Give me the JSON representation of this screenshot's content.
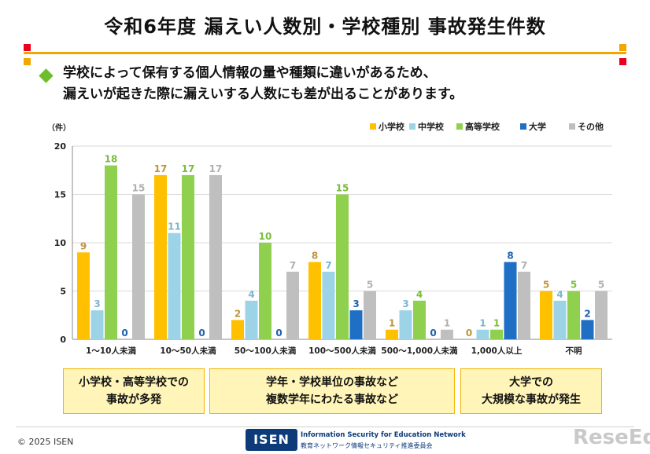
{
  "title": "令和6年度 漏えい人数別・学校種別 事故発生件数",
  "lead": [
    "学校によって保有する個人情報の量や種類に違いがあるため、",
    "漏えいが起きた際に漏えいする人数にも差が出ることがあります。"
  ],
  "callouts": [
    {
      "lines": [
        "小学校・高等学校での",
        "事故が多発"
      ]
    },
    {
      "lines": [
        "学年・学校単位の事故など",
        "複数学年にわたる事故など"
      ]
    },
    {
      "lines": [
        "大学での",
        "大規模な事故が発生"
      ]
    }
  ],
  "footer": {
    "copyright": "© 2025 ISEN",
    "logo_mark": "ISEN",
    "logo_en": "Information Security for Education Network",
    "logo_ja": "教育ネットワーク情報セキュリティ推進委員会",
    "watermark": "ReseEd"
  },
  "colors": {
    "accent_rule": "#f0a800",
    "square_red": "#e8001c",
    "square_yellow": "#f0a800",
    "bullet_green": "#6cbf2a",
    "callout_fill": "#fff5b8",
    "callout_border": "#f4b400"
  },
  "chart_data": {
    "type": "bar",
    "ylabel": "（件）",
    "ylim": [
      0,
      20
    ],
    "yticks": [
      0,
      5,
      10,
      15,
      20
    ],
    "grid": true,
    "legend_position": "top-right",
    "categories": [
      "1～10人未満",
      "10～50人未満",
      "50～100人未満",
      "100～500人未満",
      "500～1,000人未満",
      "1,000人以上",
      "不明"
    ],
    "series": [
      {
        "name": "小学校",
        "color": "#ffc000",
        "label_color": "#c0953a",
        "values": [
          9,
          17,
          2,
          8,
          1,
          0,
          5
        ]
      },
      {
        "name": "中学校",
        "color": "#9dd3e6",
        "label_color": "#79b8cf",
        "values": [
          3,
          11,
          4,
          7,
          3,
          1,
          4
        ]
      },
      {
        "name": "高等学校",
        "color": "#8fd14f",
        "label_color": "#79bd3a",
        "values": [
          18,
          17,
          10,
          15,
          4,
          1,
          5
        ]
      },
      {
        "name": "大学",
        "color": "#1f6fc5",
        "label_color": "#1f5fae",
        "values": [
          0,
          0,
          0,
          3,
          0,
          8,
          2
        ]
      },
      {
        "name": "その他",
        "color": "#bfbfbf",
        "label_color": "#b0b0b0",
        "values": [
          15,
          17,
          7,
          5,
          1,
          7,
          5
        ]
      }
    ]
  }
}
